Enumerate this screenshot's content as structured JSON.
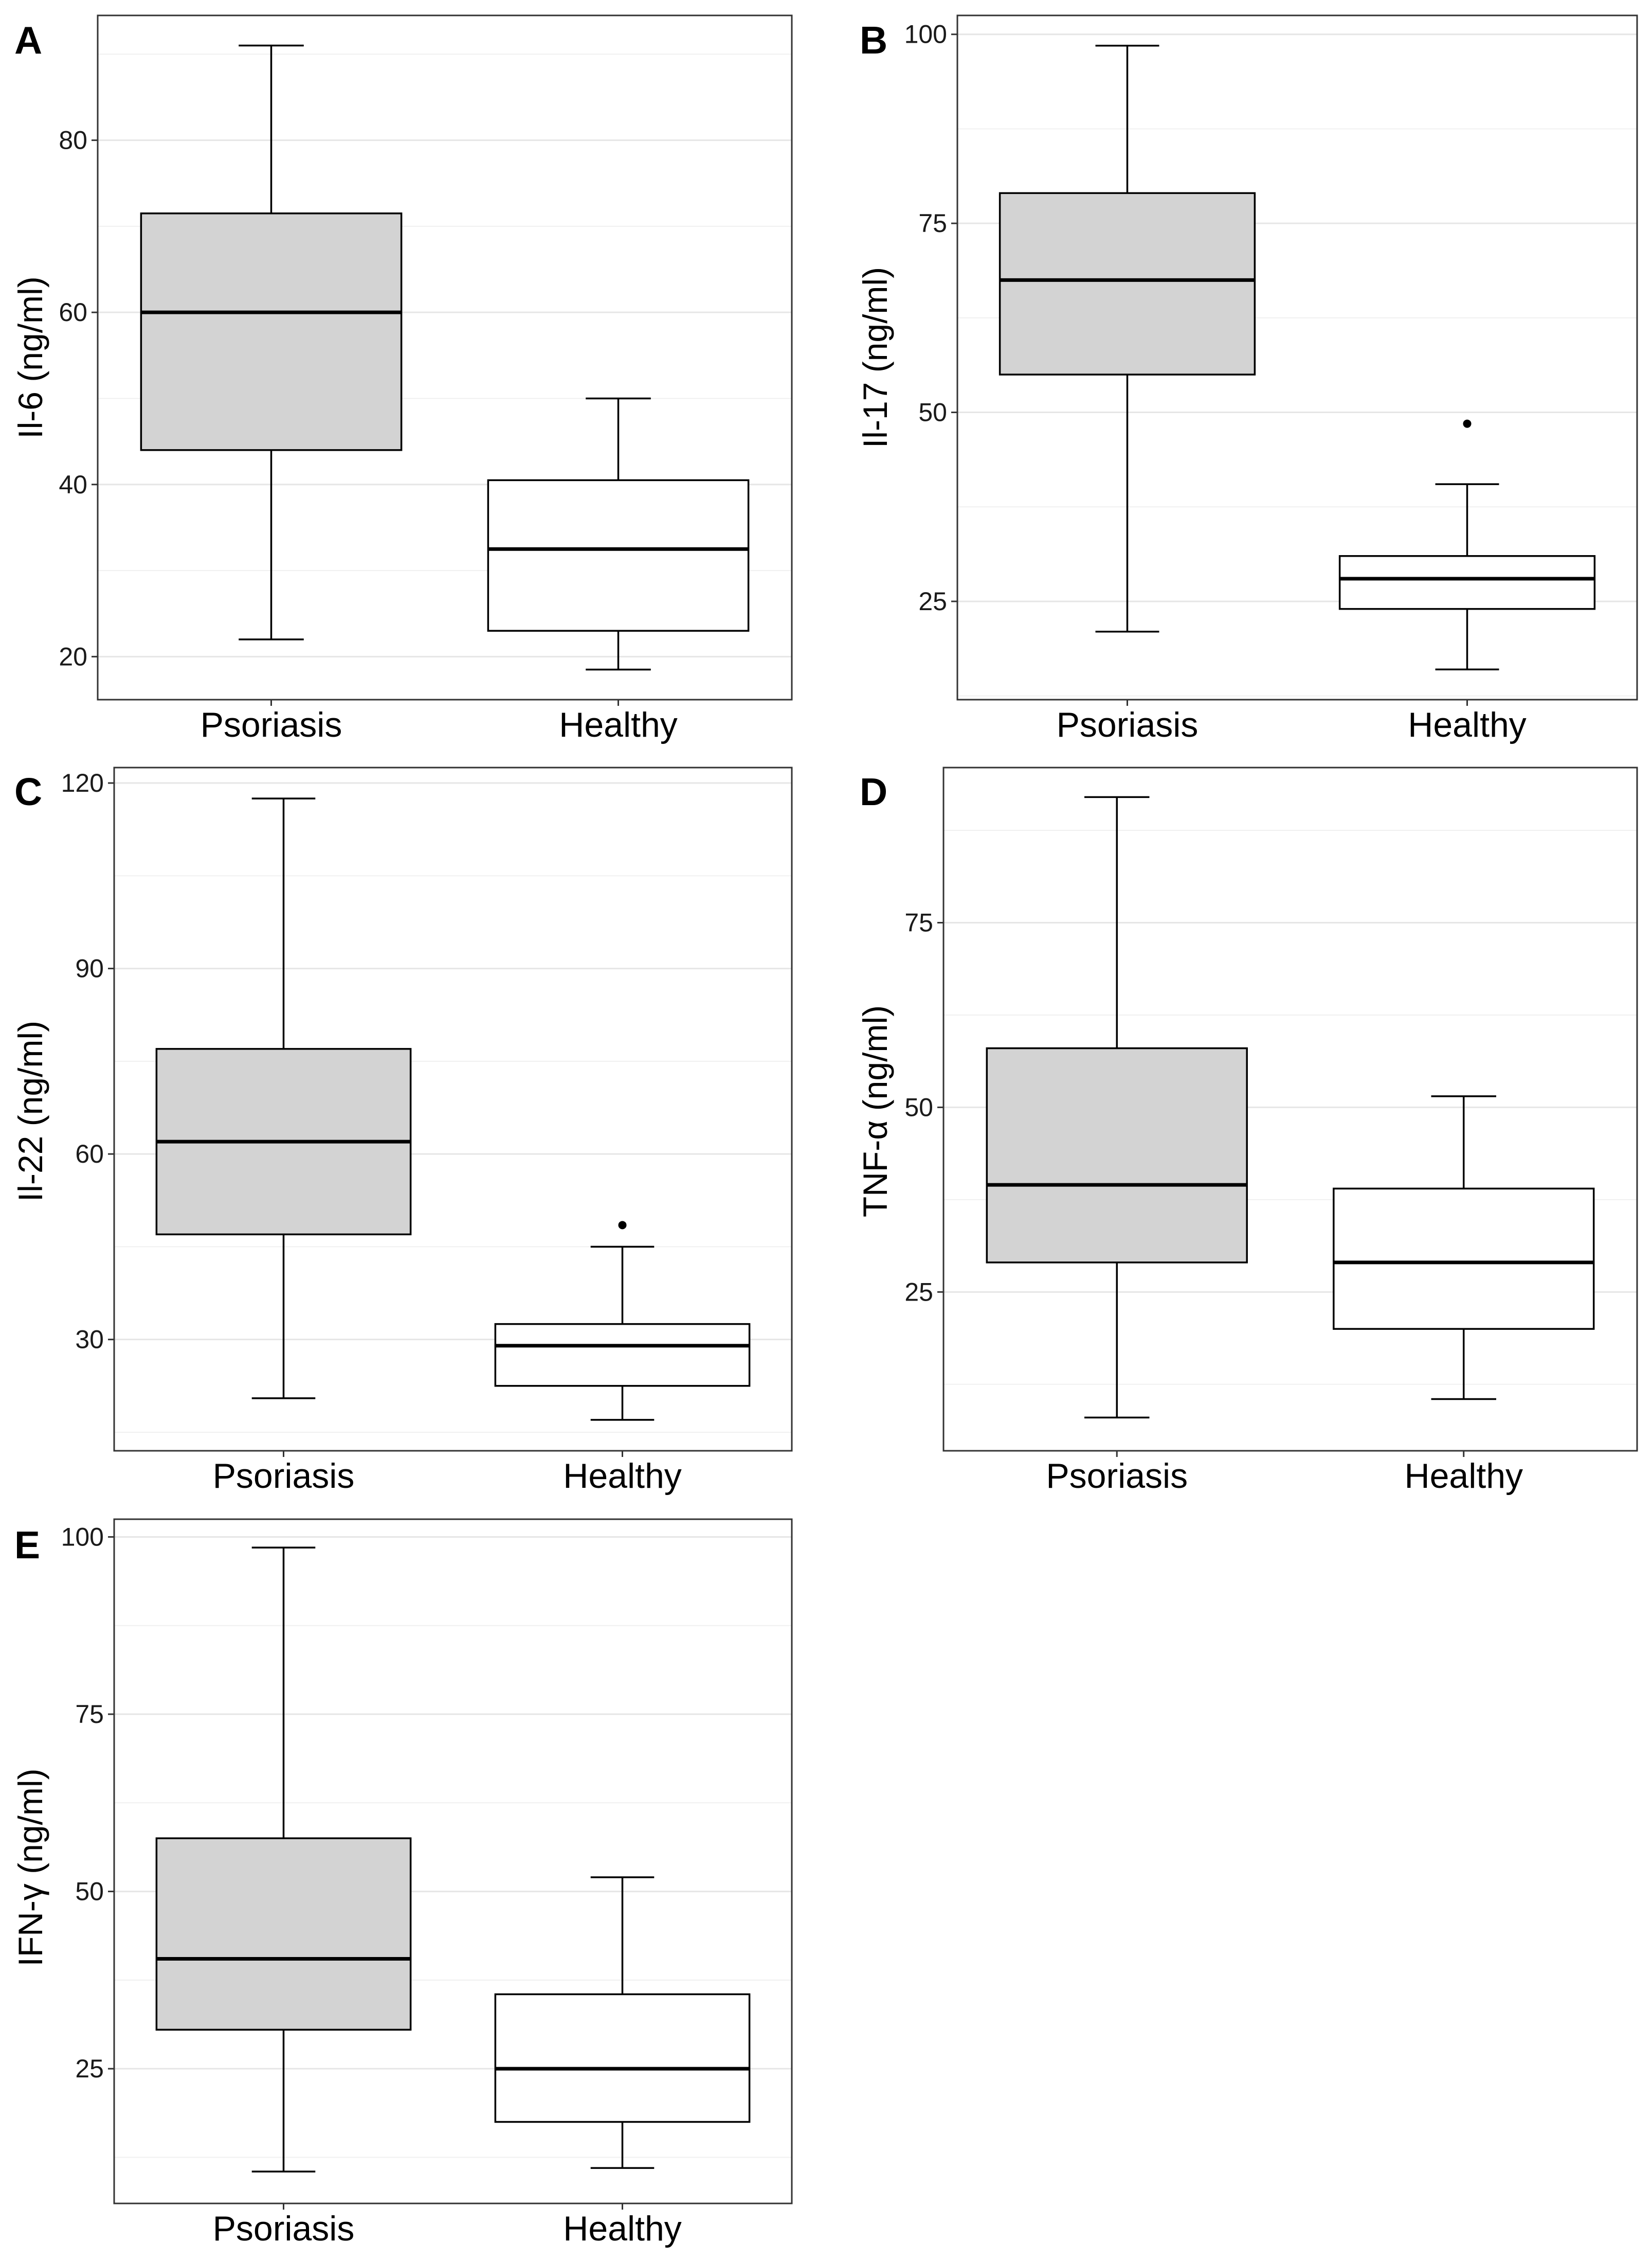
{
  "chart_data": [
    {
      "type": "boxplot",
      "panel": "A",
      "ylabel": "Il-6 (ng/ml)",
      "categories": [
        "Psoriasis",
        "Healthy"
      ],
      "yticks": [
        20,
        40,
        60,
        80
      ],
      "ylim": [
        15,
        94.5
      ],
      "boxes": [
        {
          "name": "Psoriasis",
          "fill": "#d3d3d3",
          "min": 22,
          "q1": 44,
          "median": 60,
          "q3": 71.5,
          "max": 91,
          "outliers": []
        },
        {
          "name": "Healthy",
          "fill": "#ffffff",
          "min": 18.5,
          "q1": 23,
          "median": 32.5,
          "q3": 40.5,
          "max": 50,
          "outliers": []
        }
      ]
    },
    {
      "type": "boxplot",
      "panel": "B",
      "ylabel": "Il-17 (ng/ml)",
      "categories": [
        "Psoriasis",
        "Healthy"
      ],
      "yticks": [
        25,
        50,
        75,
        100
      ],
      "ylim": [
        12,
        102.5
      ],
      "boxes": [
        {
          "name": "Psoriasis",
          "fill": "#d3d3d3",
          "min": 21,
          "q1": 55,
          "median": 67.5,
          "q3": 79,
          "max": 98.5,
          "outliers": []
        },
        {
          "name": "Healthy",
          "fill": "#ffffff",
          "min": 16,
          "q1": 24,
          "median": 28,
          "q3": 31,
          "max": 40.5,
          "outliers": [
            48.5
          ]
        }
      ]
    },
    {
      "type": "boxplot",
      "panel": "C",
      "ylabel": "Il-22 (ng/ml)",
      "categories": [
        "Psoriasis",
        "Healthy"
      ],
      "yticks": [
        30,
        60,
        90,
        120
      ],
      "ylim": [
        12,
        122.5
      ],
      "boxes": [
        {
          "name": "Psoriasis",
          "fill": "#d3d3d3",
          "min": 20.5,
          "q1": 47,
          "median": 62,
          "q3": 77,
          "max": 117.5,
          "outliers": []
        },
        {
          "name": "Healthy",
          "fill": "#ffffff",
          "min": 17,
          "q1": 22.5,
          "median": 29,
          "q3": 32.5,
          "max": 45,
          "outliers": [
            48.5
          ]
        }
      ]
    },
    {
      "type": "boxplot",
      "panel": "D",
      "ylabel": "TNF-α (ng/ml)",
      "categories": [
        "Psoriasis",
        "Healthy"
      ],
      "yticks": [
        25,
        50,
        75
      ],
      "ylim": [
        3.5,
        96
      ],
      "boxes": [
        {
          "name": "Psoriasis",
          "fill": "#d3d3d3",
          "min": 8,
          "q1": 29,
          "median": 39.5,
          "q3": 58,
          "max": 92,
          "outliers": []
        },
        {
          "name": "Healthy",
          "fill": "#ffffff",
          "min": 10.5,
          "q1": 20,
          "median": 29,
          "q3": 39,
          "max": 51.5,
          "outliers": []
        }
      ]
    },
    {
      "type": "boxplot",
      "panel": "E",
      "ylabel": "IFN-γ (ng/ml)",
      "categories": [
        "Psoriasis",
        "Healthy"
      ],
      "yticks": [
        25,
        50,
        75,
        100
      ],
      "ylim": [
        6,
        102.5
      ],
      "boxes": [
        {
          "name": "Psoriasis",
          "fill": "#d3d3d3",
          "min": 10.5,
          "q1": 30.5,
          "median": 40.5,
          "q3": 57.5,
          "max": 98.5,
          "outliers": []
        },
        {
          "name": "Healthy",
          "fill": "#ffffff",
          "min": 11,
          "q1": 17.5,
          "median": 25,
          "q3": 35.5,
          "max": 52,
          "outliers": []
        }
      ]
    }
  ]
}
